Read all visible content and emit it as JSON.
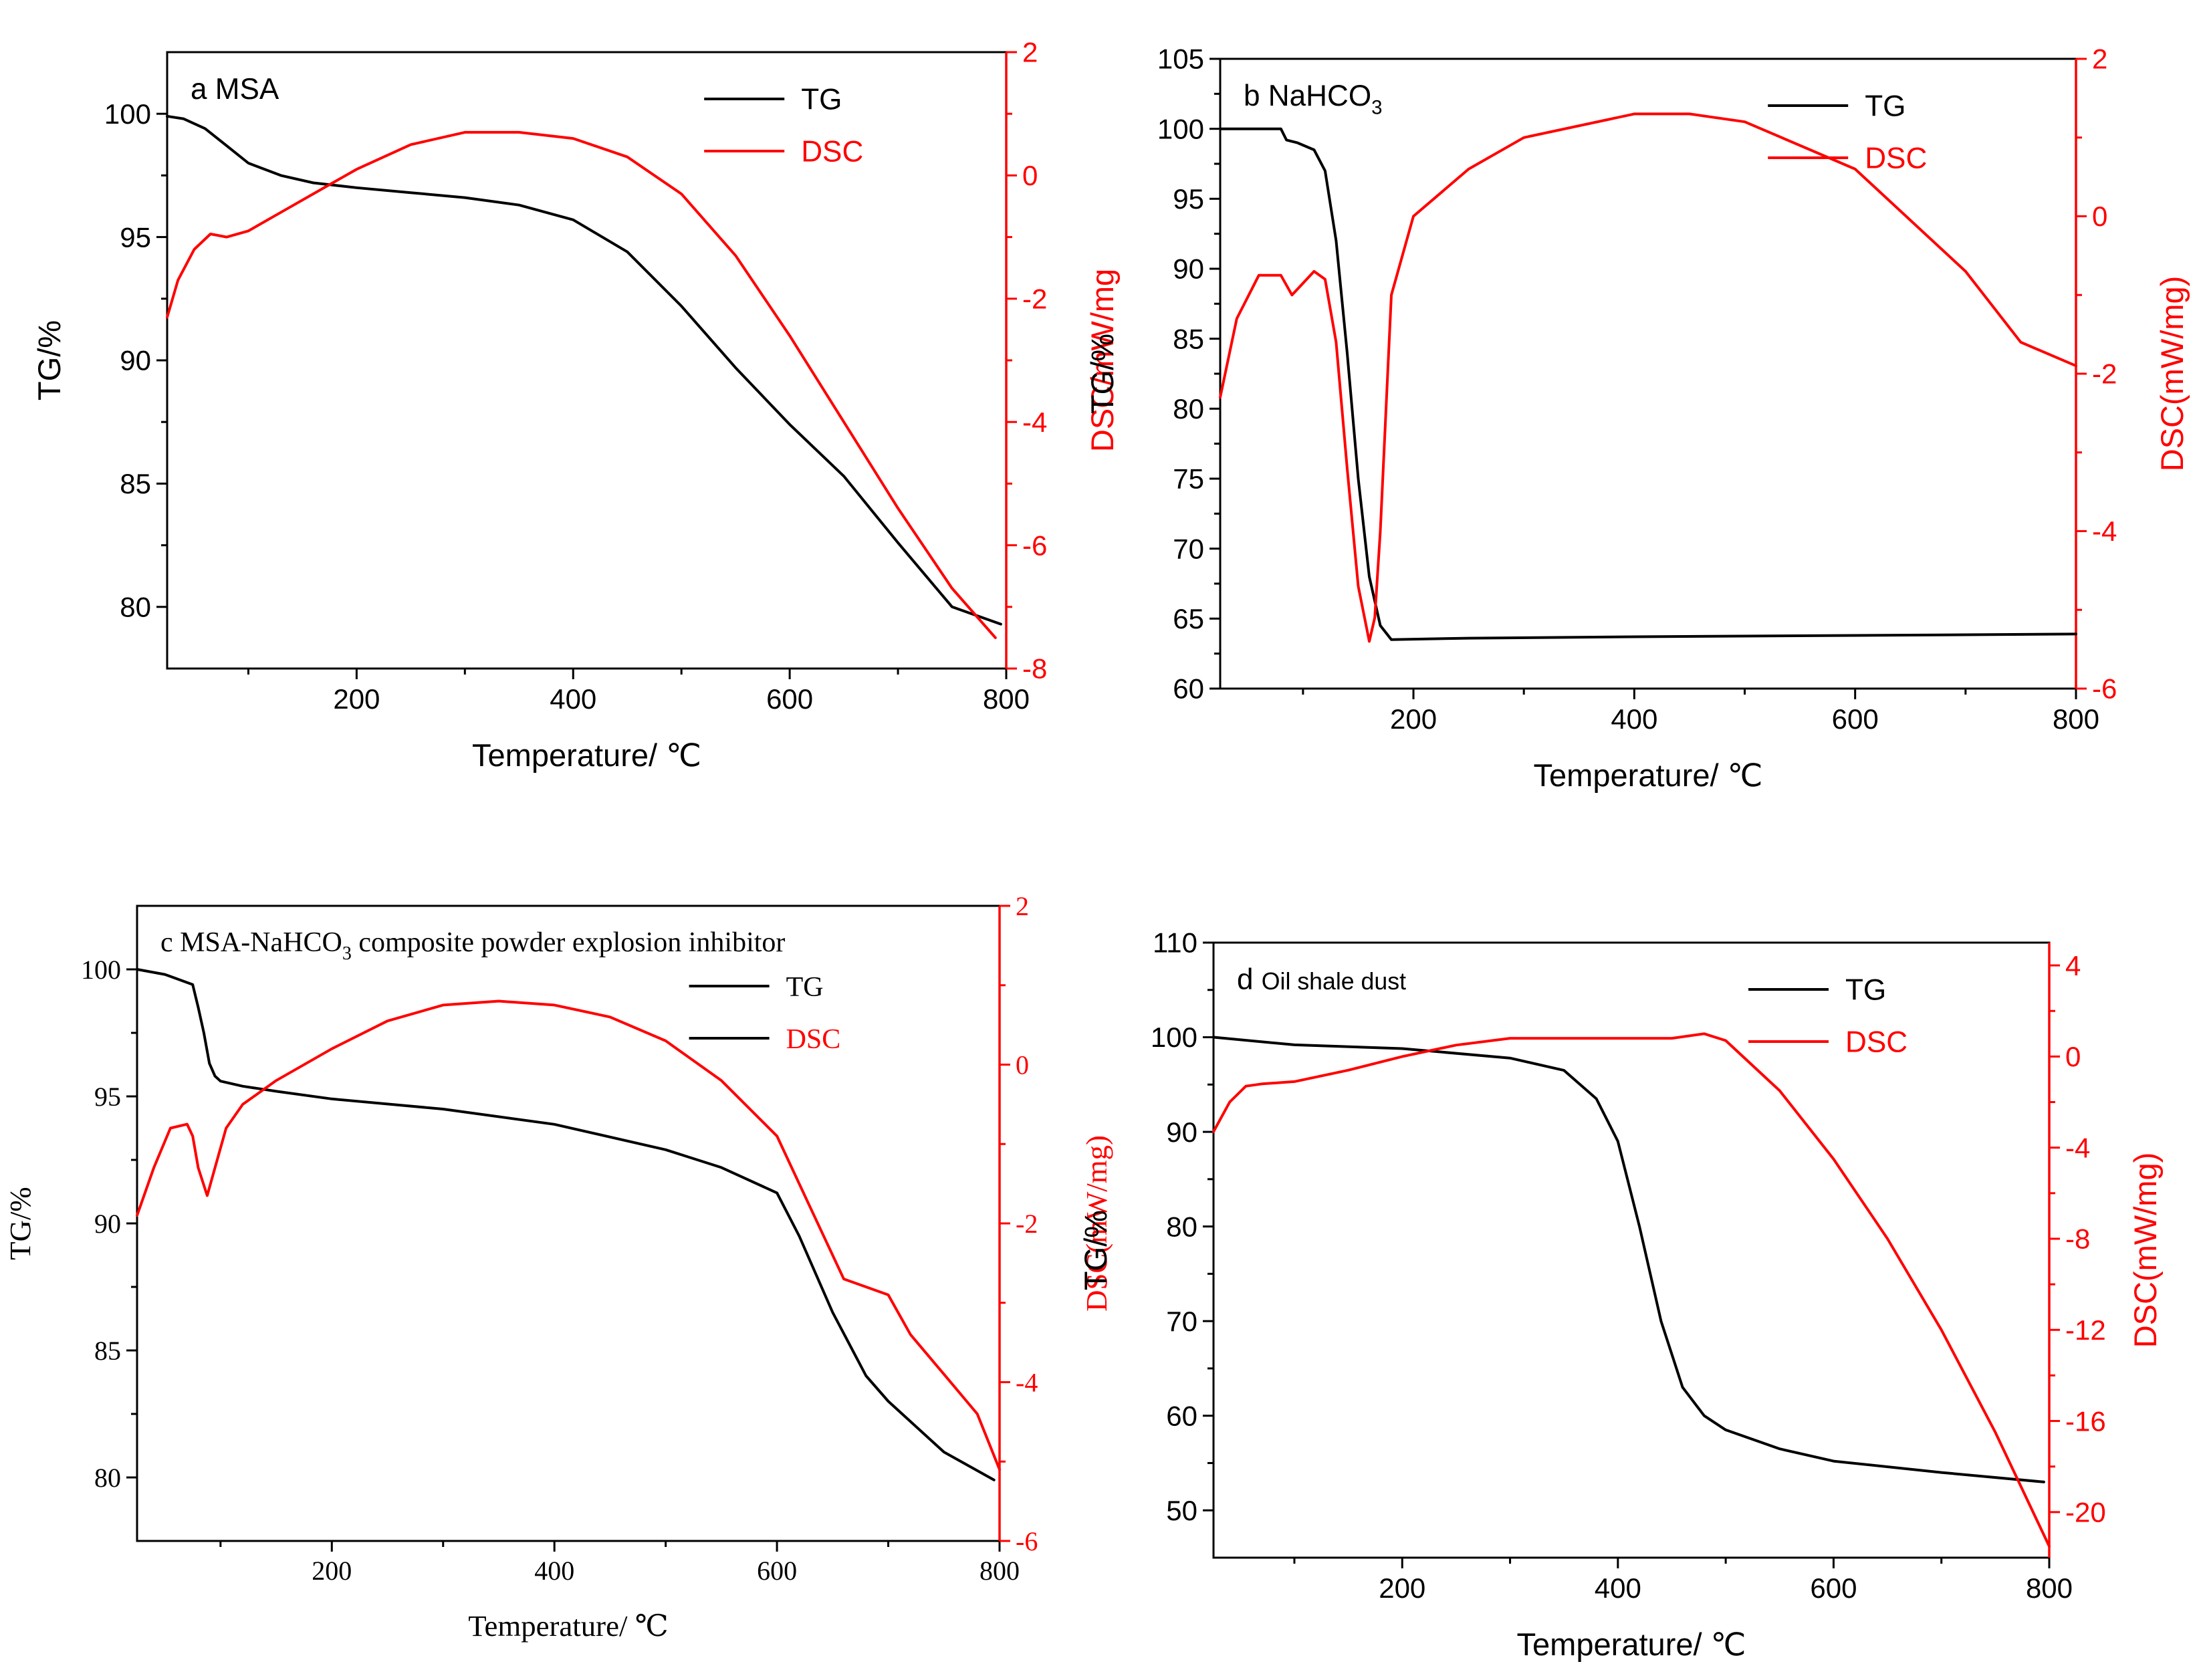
{
  "colors": {
    "tg": "#000000",
    "dsc": "#ff0000",
    "axis_left": "#000000",
    "axis_right": "#ff0000"
  },
  "chart_data": [
    {
      "id": "a",
      "type": "line",
      "font": "sans",
      "panel_label": "a",
      "title": "MSA",
      "title_sub": "",
      "xlabel": "Temperature/ ℃",
      "ylabel_left": "TG/%",
      "ylabel_right": "DSC/mW/mg",
      "xlim": [
        25,
        800
      ],
      "xticks": [
        200,
        400,
        600,
        800
      ],
      "ylim_left": [
        77.5,
        102.5
      ],
      "yticks_left": [
        80,
        85,
        90,
        95,
        100
      ],
      "ylim_right": [
        -8,
        2
      ],
      "yticks_right": [
        -8,
        -6,
        -4,
        -2,
        0,
        2
      ],
      "legend": [
        "TG",
        "DSC"
      ],
      "series": [
        {
          "name": "TG",
          "axis": "left",
          "x": [
            25,
            40,
            60,
            80,
            100,
            130,
            160,
            200,
            250,
            300,
            350,
            400,
            450,
            500,
            550,
            600,
            650,
            700,
            750,
            795
          ],
          "values": [
            99.9,
            99.8,
            99.4,
            98.7,
            98.0,
            97.5,
            97.2,
            97.0,
            96.8,
            96.6,
            96.3,
            95.7,
            94.4,
            92.2,
            89.7,
            87.4,
            85.3,
            82.6,
            80.0,
            79.3
          ]
        },
        {
          "name": "DSC",
          "axis": "right",
          "x": [
            25,
            35,
            50,
            65,
            80,
            100,
            130,
            170,
            200,
            250,
            300,
            350,
            400,
            450,
            500,
            550,
            600,
            650,
            700,
            750,
            790
          ],
          "values": [
            -2.3,
            -1.7,
            -1.2,
            -0.95,
            -1.0,
            -0.9,
            -0.6,
            -0.2,
            0.1,
            0.5,
            0.7,
            0.7,
            0.6,
            0.3,
            -0.3,
            -1.3,
            -2.6,
            -4.0,
            -5.4,
            -6.7,
            -7.5
          ]
        }
      ]
    },
    {
      "id": "b",
      "type": "line",
      "font": "sans",
      "panel_label": "b",
      "title": "NaHCO",
      "title_sub": "3",
      "xlabel": "Temperature/ ℃",
      "ylabel_left": "TG/%",
      "ylabel_right": "DSC(mW/mg)",
      "xlim": [
        25,
        800
      ],
      "xticks": [
        200,
        400,
        600,
        800
      ],
      "ylim_left": [
        60,
        105
      ],
      "yticks_left": [
        60,
        65,
        70,
        75,
        80,
        85,
        90,
        95,
        100,
        105
      ],
      "ylim_right": [
        -6,
        2
      ],
      "yticks_right": [
        -6,
        -4,
        -2,
        0,
        2
      ],
      "legend": [
        "TG",
        "DSC"
      ],
      "series": [
        {
          "name": "TG",
          "axis": "left",
          "x": [
            25,
            80,
            85,
            95,
            110,
            120,
            130,
            140,
            150,
            160,
            170,
            180,
            250,
            400,
            600,
            800
          ],
          "values": [
            100,
            100,
            99.2,
            99.0,
            98.5,
            97.0,
            92.0,
            84.0,
            75.0,
            68.0,
            64.5,
            63.5,
            63.6,
            63.7,
            63.8,
            63.9
          ]
        },
        {
          "name": "DSC",
          "axis": "right",
          "x": [
            25,
            40,
            60,
            80,
            90,
            100,
            110,
            120,
            130,
            140,
            150,
            160,
            165,
            170,
            180,
            200,
            250,
            300,
            400,
            450,
            500,
            600,
            700,
            750,
            800
          ],
          "values": [
            -2.3,
            -1.3,
            -0.75,
            -0.75,
            -1.0,
            -0.85,
            -0.7,
            -0.8,
            -1.6,
            -3.2,
            -4.7,
            -5.4,
            -5.1,
            -4.0,
            -1.0,
            0.0,
            0.6,
            1.0,
            1.3,
            1.3,
            1.2,
            0.6,
            -0.7,
            -1.6,
            -1.9
          ]
        }
      ]
    },
    {
      "id": "c",
      "type": "line",
      "font": "serif",
      "panel_label": "c",
      "title": "MSA-NaHCO",
      "title_sub": "3",
      "title_suffix": " composite powder explosion inhibitor",
      "xlabel": "Temperature/ ℃",
      "ylabel_left": "TG/%",
      "ylabel_right": "DSC(mW/mg)",
      "xlim": [
        25,
        800
      ],
      "xticks": [
        200,
        400,
        600,
        800
      ],
      "ylim_left": [
        77.5,
        102.5
      ],
      "yticks_left": [
        80,
        85,
        90,
        95,
        100
      ],
      "ylim_right": [
        -6,
        2
      ],
      "yticks_right": [
        -6,
        -4,
        -2,
        0,
        2
      ],
      "legend": [
        "TG",
        "DSC"
      ],
      "series": [
        {
          "name": "TG",
          "axis": "left",
          "x": [
            25,
            50,
            75,
            80,
            85,
            90,
            95,
            100,
            120,
            150,
            200,
            300,
            400,
            500,
            550,
            600,
            620,
            650,
            680,
            700,
            750,
            795
          ],
          "values": [
            100,
            99.8,
            99.4,
            98.5,
            97.5,
            96.3,
            95.8,
            95.6,
            95.4,
            95.2,
            94.9,
            94.5,
            93.9,
            92.9,
            92.2,
            91.2,
            89.5,
            86.5,
            84.0,
            83.0,
            81.0,
            79.9
          ]
        },
        {
          "name": "DSC",
          "axis": "right",
          "x": [
            25,
            40,
            55,
            70,
            75,
            80,
            88,
            95,
            105,
            120,
            150,
            200,
            250,
            300,
            350,
            400,
            450,
            500,
            550,
            600,
            630,
            660,
            680,
            700,
            720,
            750,
            780,
            800
          ],
          "values": [
            -1.9,
            -1.3,
            -0.8,
            -0.75,
            -0.9,
            -1.3,
            -1.65,
            -1.3,
            -0.8,
            -0.5,
            -0.2,
            0.2,
            0.55,
            0.75,
            0.8,
            0.75,
            0.6,
            0.3,
            -0.2,
            -0.9,
            -1.8,
            -2.7,
            -2.8,
            -2.9,
            -3.4,
            -3.9,
            -4.4,
            -5.1
          ]
        }
      ]
    },
    {
      "id": "d",
      "type": "line",
      "font": "sans",
      "panel_label": "d",
      "title": "Oil shale dust",
      "title_sub": "",
      "xlabel": "Temperature/ ℃",
      "ylabel_left": "TG/%",
      "ylabel_right": "DSC(mW/mg)",
      "xlim": [
        25,
        800
      ],
      "xticks": [
        200,
        400,
        600,
        800
      ],
      "ylim_left": [
        45,
        110
      ],
      "yticks_left": [
        50,
        60,
        70,
        80,
        90,
        100,
        110
      ],
      "ylim_right": [
        -22,
        5
      ],
      "yticks_right": [
        -20,
        -16,
        -12,
        -8,
        -4,
        0,
        4
      ],
      "legend": [
        "TG",
        "DSC"
      ],
      "series": [
        {
          "name": "TG",
          "axis": "left",
          "x": [
            25,
            100,
            200,
            300,
            350,
            380,
            400,
            420,
            440,
            460,
            480,
            500,
            550,
            600,
            700,
            795
          ],
          "values": [
            100,
            99.2,
            98.8,
            97.8,
            96.5,
            93.5,
            89.0,
            80.0,
            70.0,
            63.0,
            60.0,
            58.5,
            56.5,
            55.2,
            54.0,
            53.0
          ]
        },
        {
          "name": "DSC",
          "axis": "right",
          "x": [
            25,
            40,
            55,
            70,
            100,
            150,
            200,
            250,
            300,
            350,
            400,
            450,
            480,
            500,
            550,
            600,
            650,
            700,
            750,
            800
          ],
          "values": [
            -3.3,
            -2.0,
            -1.3,
            -1.2,
            -1.1,
            -0.6,
            0.0,
            0.5,
            0.8,
            0.8,
            0.8,
            0.8,
            1.0,
            0.7,
            -1.5,
            -4.5,
            -8.0,
            -12.0,
            -16.5,
            -21.5
          ]
        }
      ]
    }
  ]
}
